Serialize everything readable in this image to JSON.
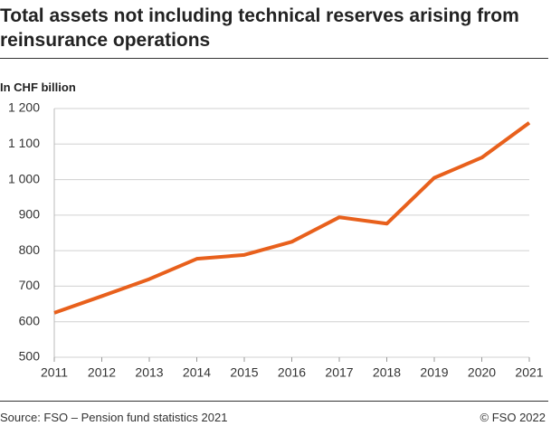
{
  "chart_data": {
    "type": "line",
    "title": "Total assets not including technical reserves arising from reinsurance operations",
    "y_axis_label": "In CHF billion",
    "source": "Source: FSO – Pension fund statistics 2021",
    "copyright": "© FSO 2022",
    "x": [
      2011,
      2012,
      2013,
      2014,
      2015,
      2016,
      2017,
      2018,
      2019,
      2020,
      2021
    ],
    "series": [
      {
        "name": "Total assets",
        "color": "#e8601c",
        "values": [
          625,
          672,
          720,
          777,
          788,
          825,
          894,
          876,
          1005,
          1062,
          1160
        ]
      }
    ],
    "xlim": [
      2011,
      2021
    ],
    "xticks": [
      2011,
      2012,
      2013,
      2014,
      2015,
      2016,
      2017,
      2018,
      2019,
      2020,
      2021
    ],
    "ylim": [
      500,
      1200
    ],
    "yticks": [
      500,
      600,
      700,
      800,
      900,
      {
        "value": 1000,
        "label": "1 000"
      },
      {
        "value": 1100,
        "label": "1 100"
      },
      {
        "value": 1200,
        "label": "1 200"
      }
    ],
    "grid": true
  }
}
